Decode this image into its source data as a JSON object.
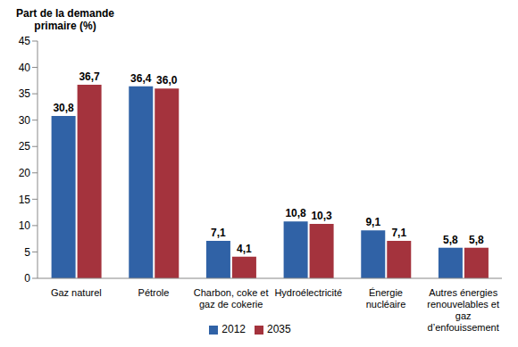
{
  "chart_data": {
    "type": "bar",
    "y_label": "Part de la demande primaire (%)",
    "categories": [
      "Gaz naturel",
      "Pétrole",
      "Charbon, coke et gaz de cokerie",
      "Hydroélectricité",
      "Énergie nucléaire",
      "Autres énergies renouvelables et gaz d’enfouissement"
    ],
    "series": [
      {
        "name": "2012",
        "color": "#3062a6",
        "values": [
          30.8,
          36.4,
          7.1,
          10.8,
          9.1,
          5.8
        ],
        "value_labels": [
          "30,8",
          "36,4",
          "7,1",
          "10,8",
          "9,1",
          "5,8"
        ]
      },
      {
        "name": "2035",
        "color": "#a4333d",
        "values": [
          36.7,
          36.0,
          4.1,
          10.3,
          7.1,
          5.8
        ],
        "value_labels": [
          "36,7",
          "36,0",
          "4,1",
          "10,3",
          "7,1",
          "5,8"
        ]
      }
    ],
    "ylim": [
      0,
      45
    ],
    "yticks": [
      0,
      5,
      10,
      15,
      20,
      25,
      30,
      35,
      40,
      45
    ],
    "grid": false,
    "data_labels": true,
    "legend": "bottom"
  }
}
